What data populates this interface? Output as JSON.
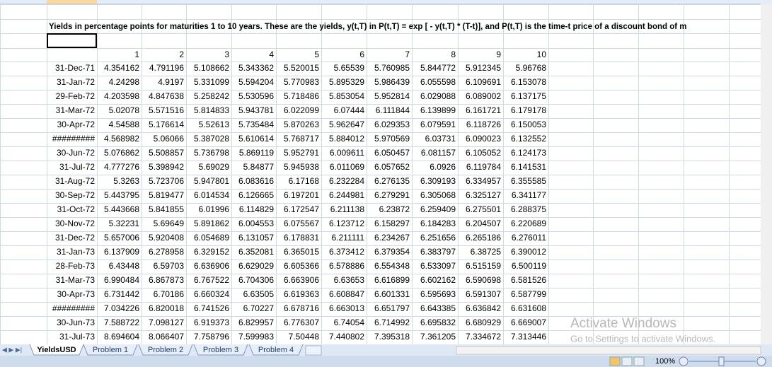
{
  "title": "Yields in percentage points for maturities 1 to 10 years. These are the yields, y(t,T) in P(t,T) = exp [ - y(t,T) * (T-t)], and P(t,T) is the time-t price of a discount bond of m",
  "header": [
    1,
    2,
    3,
    4,
    5,
    6,
    7,
    8,
    9,
    10
  ],
  "rows": [
    {
      "date": "31-Dec-71",
      "values": [
        4.354162,
        4.791196,
        5.108662,
        5.343362,
        5.520015,
        5.65539,
        5.760985,
        5.844772,
        5.912345,
        5.96768
      ]
    },
    {
      "date": "31-Jan-72",
      "values": [
        4.24298,
        4.9197,
        5.331099,
        5.594204,
        5.770983,
        5.895329,
        5.986439,
        6.055598,
        6.109691,
        6.153078
      ]
    },
    {
      "date": "29-Feb-72",
      "values": [
        4.203598,
        4.847638,
        5.258242,
        5.530596,
        5.718486,
        5.853054,
        5.952814,
        6.029088,
        6.089002,
        6.137175
      ]
    },
    {
      "date": "31-Mar-72",
      "values": [
        5.02078,
        5.571516,
        5.814833,
        5.943781,
        6.022099,
        6.07444,
        6.111844,
        6.139899,
        6.161721,
        6.179178
      ]
    },
    {
      "date": "30-Apr-72",
      "values": [
        4.54588,
        5.176614,
        5.52613,
        5.735484,
        5.870263,
        5.962647,
        6.029353,
        6.079591,
        6.118726,
        6.150053
      ]
    },
    {
      "date": "#########",
      "values": [
        4.568982,
        5.06066,
        5.387028,
        5.610614,
        5.768717,
        5.884012,
        5.970569,
        6.03731,
        6.090023,
        6.132552
      ]
    },
    {
      "date": "30-Jun-72",
      "values": [
        5.076862,
        5.508857,
        5.736798,
        5.869119,
        5.952791,
        6.009611,
        6.050457,
        6.081157,
        6.105052,
        6.124173
      ]
    },
    {
      "date": "31-Jul-72",
      "values": [
        4.777276,
        5.398942,
        5.69029,
        5.84877,
        5.945938,
        6.011069,
        6.057652,
        6.0926,
        6.119784,
        6.141531
      ]
    },
    {
      "date": "31-Aug-72",
      "values": [
        5.3263,
        5.723706,
        5.947801,
        6.083616,
        6.17168,
        6.232284,
        6.276135,
        6.309193,
        6.334957,
        6.355585
      ]
    },
    {
      "date": "30-Sep-72",
      "values": [
        5.443795,
        5.819477,
        6.014534,
        6.126665,
        6.197201,
        6.244981,
        6.279291,
        6.305068,
        6.325127,
        6.341177
      ]
    },
    {
      "date": "31-Oct-72",
      "values": [
        5.443668,
        5.841855,
        6.01996,
        6.114829,
        6.172547,
        6.211138,
        6.23872,
        6.259409,
        6.275501,
        6.288375
      ]
    },
    {
      "date": "30-Nov-72",
      "values": [
        5.32231,
        5.69649,
        5.891862,
        6.004553,
        6.075567,
        6.123712,
        6.158297,
        6.184283,
        6.204507,
        6.220689
      ]
    },
    {
      "date": "31-Dec-72",
      "values": [
        5.657006,
        5.920408,
        6.054689,
        6.131057,
        6.178831,
        6.211111,
        6.234267,
        6.251656,
        6.265186,
        6.276011
      ]
    },
    {
      "date": "31-Jan-73",
      "values": [
        6.137909,
        6.278958,
        6.329152,
        6.352081,
        6.365015,
        6.373412,
        6.379354,
        6.383797,
        6.38725,
        6.390012
      ]
    },
    {
      "date": "28-Feb-73",
      "values": [
        6.43448,
        6.59703,
        6.636906,
        6.629029,
        6.605366,
        6.578886,
        6.554348,
        6.533097,
        6.515159,
        6.500119
      ]
    },
    {
      "date": "31-Mar-73",
      "values": [
        6.990484,
        6.867873,
        6.767522,
        6.704306,
        6.663906,
        6.63653,
        6.616899,
        6.602162,
        6.590698,
        6.581526
      ]
    },
    {
      "date": "30-Apr-73",
      "values": [
        6.731442,
        6.70186,
        6.660324,
        6.63505,
        6.619363,
        6.608847,
        6.601331,
        6.595693,
        6.591307,
        6.587799
      ]
    },
    {
      "date": "#########",
      "values": [
        7.034226,
        6.820018,
        6.741526,
        6.70227,
        6.678716,
        6.663013,
        6.651797,
        6.643385,
        6.636842,
        6.631608
      ]
    },
    {
      "date": "30-Jun-73",
      "values": [
        7.588722,
        7.098127,
        6.919373,
        6.829957,
        6.776307,
        6.74054,
        6.714992,
        6.695832,
        6.680929,
        6.669007
      ]
    },
    {
      "date": "31-Jul-73",
      "values": [
        8.694604,
        8.066407,
        7.758796,
        7.599983,
        7.50448,
        7.440802,
        7.395318,
        7.361205,
        7.334672,
        7.313446
      ]
    }
  ],
  "tabs": [
    "YieldsUSD",
    "Problem 1",
    "Problem 2",
    "Problem 3",
    "Problem 4"
  ],
  "zoom": "100%",
  "watermark": {
    "title": "Activate Windows",
    "subtitle": "Go to Settings to activate Windows."
  }
}
